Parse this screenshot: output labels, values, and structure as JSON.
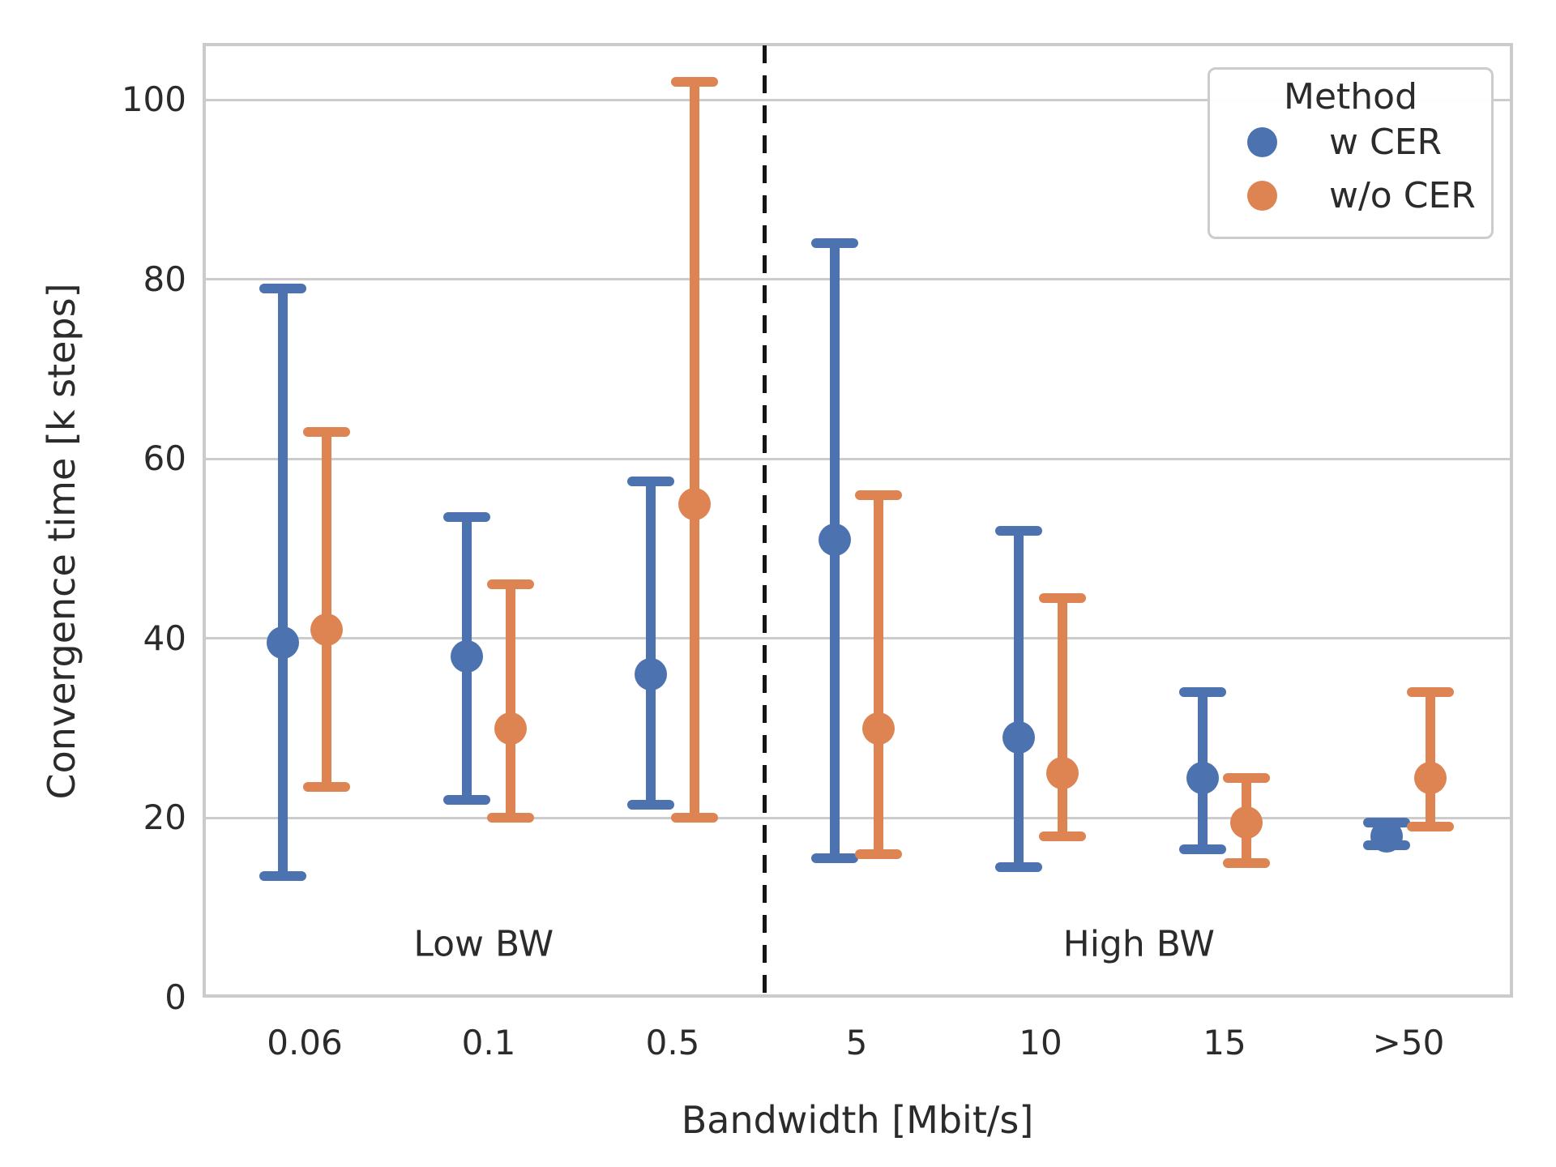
{
  "figure": {
    "background": "#ffffff",
    "text_color": "#2b2b2b",
    "grid_color": "#cccccc"
  },
  "chart_data": {
    "type": "errorbar",
    "title": "",
    "xlabel": "Bandwidth [Mbit/s]",
    "ylabel": "Convergence time [k steps]",
    "categories": [
      "0.06",
      "0.1",
      "0.5",
      "5",
      "10",
      "15",
      ">50"
    ],
    "yticks": [
      0,
      20,
      40,
      60,
      80,
      100
    ],
    "ylim": [
      0,
      106
    ],
    "grid": "horizontal",
    "divider": {
      "style": "dashed",
      "between": [
        "0.5",
        "5"
      ],
      "color": "#141414"
    },
    "annotations": [
      {
        "text": "Low BW",
        "region": "left",
        "y": 6
      },
      {
        "text": "High BW",
        "region": "right",
        "y": 6
      }
    ],
    "legend": {
      "title": "Method",
      "position": "upper right",
      "entries": [
        {
          "label": "w CER",
          "color": "#4c72b0"
        },
        {
          "label": "w/o CER",
          "color": "#dd8452"
        }
      ]
    },
    "series": [
      {
        "name": "w CER",
        "color": "#4c72b0",
        "points": [
          {
            "x": "0.06",
            "mean": 39.5,
            "lo": 13.5,
            "hi": 79
          },
          {
            "x": "0.1",
            "mean": 38,
            "lo": 22,
            "hi": 53.5
          },
          {
            "x": "0.5",
            "mean": 36,
            "lo": 21.5,
            "hi": 57.5
          },
          {
            "x": "5",
            "mean": 51,
            "lo": 15.5,
            "hi": 84
          },
          {
            "x": "10",
            "mean": 29,
            "lo": 14.5,
            "hi": 52
          },
          {
            "x": "15",
            "mean": 24.5,
            "lo": 16.5,
            "hi": 34
          },
          {
            "x": ">50",
            "mean": 18,
            "lo": 17,
            "hi": 19.5
          }
        ]
      },
      {
        "name": "w/o CER",
        "color": "#dd8452",
        "points": [
          {
            "x": "0.06",
            "mean": 41,
            "lo": 23.5,
            "hi": 63
          },
          {
            "x": "0.1",
            "mean": 30,
            "lo": 20,
            "hi": 46
          },
          {
            "x": "0.5",
            "mean": 55,
            "lo": 20,
            "hi": 102
          },
          {
            "x": "5",
            "mean": 30,
            "lo": 16,
            "hi": 56
          },
          {
            "x": "10",
            "mean": 25,
            "lo": 18,
            "hi": 44.5
          },
          {
            "x": "15",
            "mean": 19.5,
            "lo": 15,
            "hi": 24.5
          },
          {
            "x": ">50",
            "mean": 24.5,
            "lo": 19,
            "hi": 34
          }
        ]
      }
    ]
  }
}
